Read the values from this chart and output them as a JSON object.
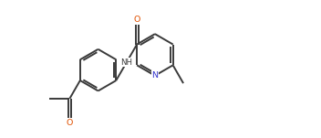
{
  "bg_color": "#ffffff",
  "line_color": "#3a3a3a",
  "line_width": 1.4,
  "atom_colors": {
    "O": "#e05000",
    "N": "#3333cc",
    "H": "#3a3a3a"
  },
  "figsize": [
    3.52,
    1.51
  ],
  "dpi": 100,
  "xlim": [
    -0.5,
    10.5
  ],
  "ylim": [
    -1.0,
    5.5
  ]
}
